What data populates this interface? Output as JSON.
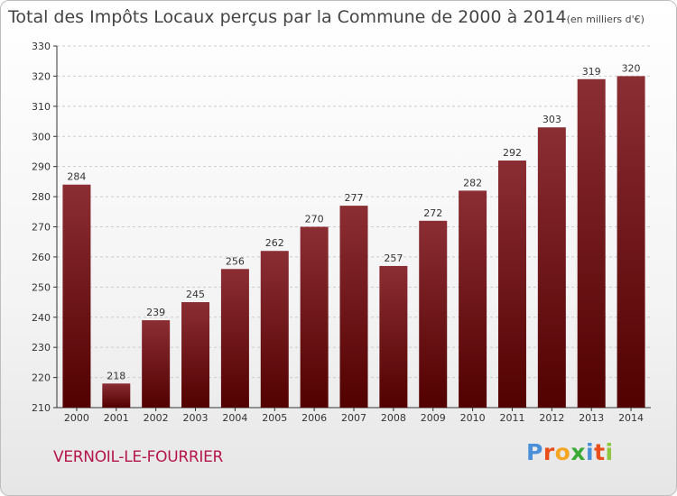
{
  "title": "Total des Impôts Locaux perçus par la Commune de 2000 à 2014",
  "unit_note": "(en milliers d'€)",
  "commune": "VERNOIL-LE-FOURRIER",
  "logo": {
    "letters": [
      {
        "char": "P",
        "color": "#4a90d9"
      },
      {
        "char": "r",
        "color": "#e94e1b"
      },
      {
        "char": "o",
        "color": "#f5a623"
      },
      {
        "char": "x",
        "color": "#3aa935"
      },
      {
        "char": "i",
        "color": "#4a90d9"
      },
      {
        "char": "t",
        "color": "#e94e1b"
      },
      {
        "char": "i",
        "color": "#8dc63f"
      }
    ]
  },
  "colors": {
    "bar_top": "#8b2e34",
    "bar_bottom": "#520000",
    "axis": "#333333",
    "grid": "#cccccc",
    "commune": "#b5164a"
  },
  "chart_data": {
    "type": "bar",
    "title": "Total des Impôts Locaux perçus par la Commune de 2000 à 2014",
    "xlabel": "",
    "ylabel": "",
    "categories": [
      "2000",
      "2001",
      "2002",
      "2003",
      "2004",
      "2005",
      "2006",
      "2007",
      "2008",
      "2009",
      "2010",
      "2011",
      "2012",
      "2013",
      "2014"
    ],
    "values": [
      284,
      218,
      239,
      245,
      256,
      262,
      270,
      277,
      257,
      272,
      282,
      292,
      303,
      319,
      320
    ],
    "ylim": [
      210,
      330
    ],
    "yticks": [
      210,
      220,
      230,
      240,
      250,
      260,
      270,
      280,
      290,
      300,
      310,
      320,
      330
    ],
    "grid": true,
    "legend": "none"
  }
}
